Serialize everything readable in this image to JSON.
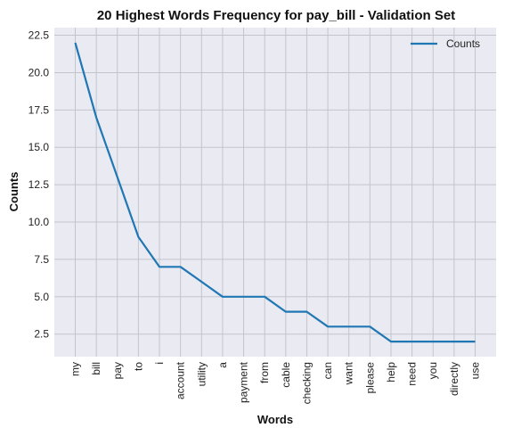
{
  "chart_data": {
    "type": "line",
    "title": "20 Highest Words Frequency for pay_bill - Validation Set",
    "xlabel": "Words",
    "ylabel": "Counts",
    "categories": [
      "my",
      "bill",
      "pay",
      "to",
      "i",
      "account",
      "utility",
      "a",
      "payment",
      "from",
      "cable",
      "checking",
      "can",
      "want",
      "please",
      "help",
      "need",
      "you",
      "directly",
      "use"
    ],
    "series": [
      {
        "name": "Counts",
        "values": [
          22,
          17,
          13,
          9,
          7,
          7,
          6,
          5,
          5,
          5,
          4,
          4,
          3,
          3,
          3,
          2,
          2,
          2,
          2,
          2
        ]
      }
    ],
    "ylim": [
      0.99,
      23.01
    ],
    "yticks": [
      2.5,
      5.0,
      7.5,
      10.0,
      12.5,
      15.0,
      17.5,
      20.0,
      22.5
    ],
    "ytick_labels": [
      "2.5",
      "5.0",
      "7.5",
      "10.0",
      "12.5",
      "15.0",
      "17.5",
      "20.0",
      "22.5"
    ],
    "grid": true,
    "legend_position": "top-right",
    "colors": {
      "line": "#1f77b4",
      "plot_background": "#eaeaf2",
      "grid": "#c4c4cc"
    }
  }
}
